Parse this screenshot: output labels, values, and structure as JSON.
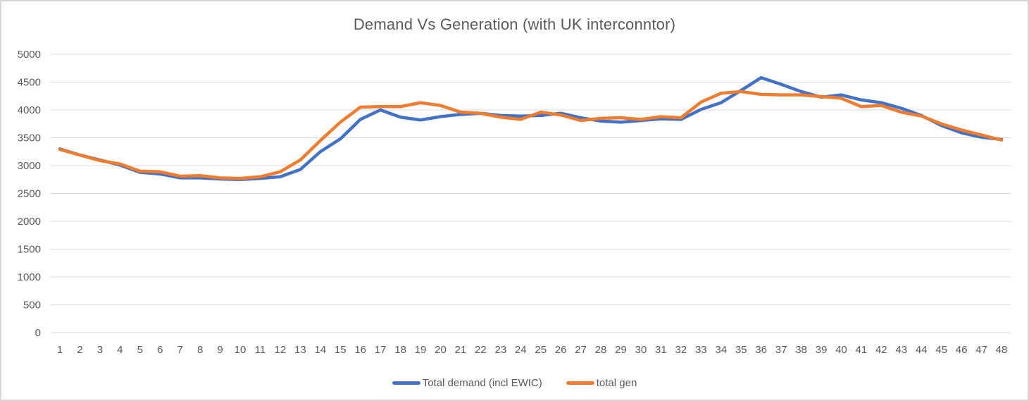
{
  "window": {
    "background_color": "#FFFFFF",
    "border_color": "#D6D6D6"
  },
  "chart_data": {
    "type": "line",
    "title": "Demand Vs Generation (with UK interconntor)",
    "x": [
      1,
      2,
      3,
      4,
      5,
      6,
      7,
      8,
      9,
      10,
      11,
      12,
      13,
      14,
      15,
      16,
      17,
      18,
      19,
      20,
      21,
      22,
      23,
      24,
      25,
      26,
      27,
      28,
      29,
      30,
      31,
      32,
      33,
      34,
      35,
      36,
      37,
      38,
      39,
      40,
      41,
      42,
      43,
      44,
      45,
      46,
      47,
      48
    ],
    "series": [
      {
        "name": "Total demand (incl EWIC)",
        "color": "#4472C4",
        "values": [
          3300,
          3190,
          3100,
          3010,
          2880,
          2850,
          2780,
          2780,
          2760,
          2750,
          2770,
          2800,
          2930,
          3250,
          3480,
          3830,
          4000,
          3870,
          3820,
          3880,
          3920,
          3940,
          3900,
          3890,
          3900,
          3940,
          3860,
          3800,
          3780,
          3810,
          3840,
          3830,
          4010,
          4130,
          4350,
          4580,
          4460,
          4330,
          4230,
          4270,
          4180,
          4130,
          4030,
          3900,
          3720,
          3590,
          3510,
          3470
        ]
      },
      {
        "name": "total gen",
        "color": "#ED7D31",
        "values": [
          3290,
          3190,
          3090,
          3030,
          2900,
          2890,
          2810,
          2820,
          2780,
          2770,
          2800,
          2890,
          3100,
          3450,
          3780,
          4050,
          4060,
          4060,
          4130,
          4080,
          3960,
          3940,
          3870,
          3830,
          3960,
          3910,
          3810,
          3850,
          3860,
          3830,
          3880,
          3860,
          4140,
          4300,
          4330,
          4280,
          4270,
          4270,
          4240,
          4210,
          4060,
          4080,
          3960,
          3890,
          3750,
          3640,
          3550,
          3460
        ]
      }
    ],
    "ylim": [
      0,
      5000
    ],
    "ytick_step": 500,
    "ytick_labels": [
      "0",
      "500",
      "1000",
      "1500",
      "2000",
      "2500",
      "3000",
      "3500",
      "4000",
      "4500",
      "5000"
    ],
    "grid": true,
    "gridline_color": "#D9D9D9",
    "axis_label_color": "#595959",
    "line_width": 4.5,
    "legend_position": "bottom"
  }
}
